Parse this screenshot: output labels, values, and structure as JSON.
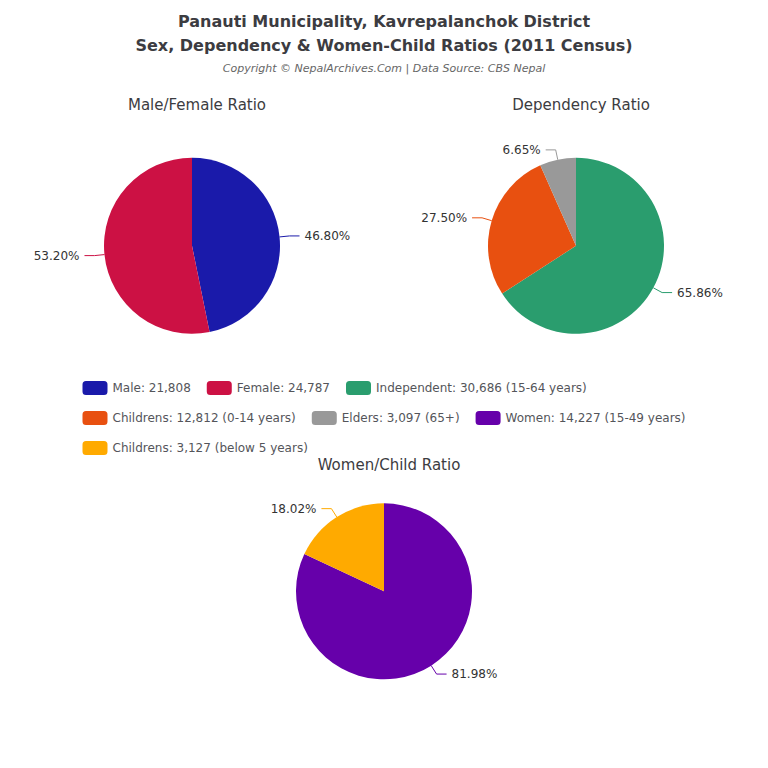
{
  "title": "Panauti Municipality, Kavrepalanchok District",
  "subtitle": "Sex, Dependency & Women-Child Ratios (2011 Census)",
  "annotations": [
    "Copyright © NepalArchives.Com | Data Source: CBS Nepal"
  ],
  "legend": "center",
  "chart_data": [
    {
      "type": "pie",
      "title": "Male/Female Ratio",
      "categories": [
        "Male: 21,808",
        "Female: 24,787"
      ],
      "values": [
        46.8,
        53.2
      ],
      "value_labels": [
        "46.80%",
        "53.20%"
      ],
      "colors": [
        "#1a1aaa",
        "#cc1144"
      ],
      "data_labels": true
    },
    {
      "type": "pie",
      "title": "Dependency Ratio",
      "categories": [
        "Independent: 30,686 (15-64 years)",
        "Childrens: 12,812 (0-14 years)",
        "Elders: 3,097 (65+)"
      ],
      "values": [
        65.86,
        27.5,
        6.65
      ],
      "value_labels": [
        "65.86%",
        "27.50%",
        "6.65%"
      ],
      "colors": [
        "#2a9d6e",
        "#e85010",
        "#999999"
      ],
      "data_labels": true
    },
    {
      "type": "pie",
      "title": "Women/Child Ratio",
      "categories": [
        "Women: 14,227 (15-49 years)",
        "Childrens: 3,127 (below 5 years)"
      ],
      "values": [
        81.98,
        18.02
      ],
      "value_labels": [
        "81.98%",
        "18.02%"
      ],
      "colors": [
        "#6600aa",
        "#ffaa00"
      ],
      "data_labels": true
    }
  ]
}
